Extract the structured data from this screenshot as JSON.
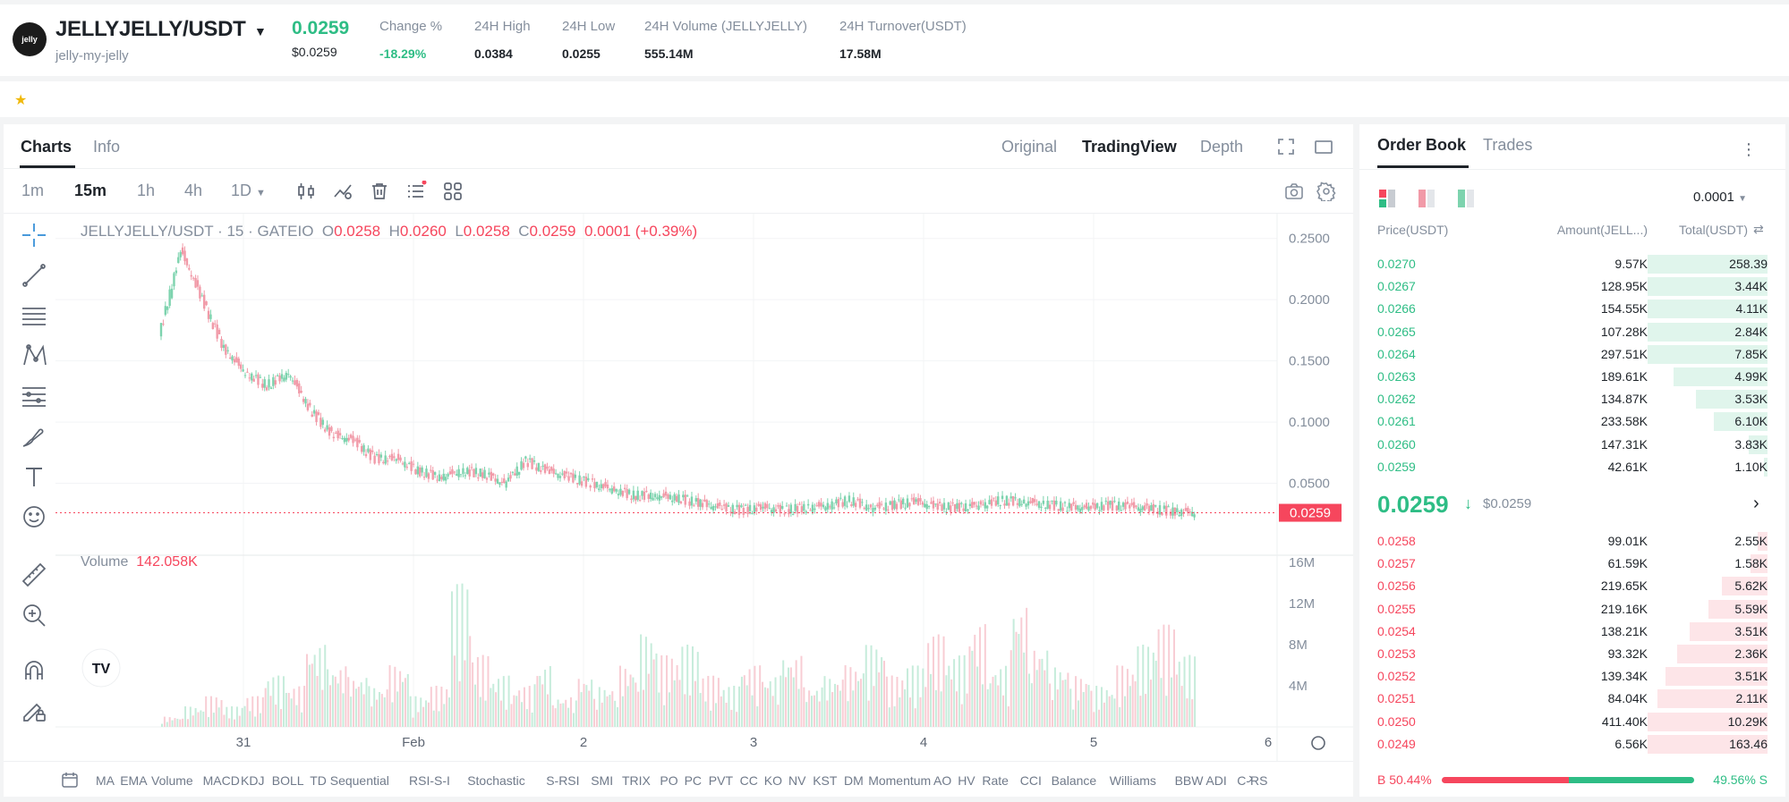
{
  "header": {
    "logo_text": "jelly",
    "pair": "JELLYJELLY/USDT",
    "pair_sub": "jelly-my-jelly",
    "last_price": "0.0259",
    "last_price_usd": "$0.0259",
    "stats": [
      {
        "label": "Change %",
        "value": "-18.29%",
        "green": true
      },
      {
        "label": "24H High",
        "value": "0.0384"
      },
      {
        "label": "24H Low",
        "value": "0.0255"
      },
      {
        "label": "24H Volume (JELLYJELLY)",
        "value": "555.14M"
      },
      {
        "label": "24H Turnover(USDT)",
        "value": "17.58M"
      }
    ]
  },
  "chart_tabs": {
    "charts": "Charts",
    "info": "Info"
  },
  "view_options": {
    "original": "Original",
    "tradingview": "TradingView",
    "depth": "Depth"
  },
  "intervals": [
    "1m",
    "15m",
    "1h",
    "4h",
    "1D"
  ],
  "active_interval": "15m",
  "legend": {
    "symbol": "JELLYJELLY/USDT · 15 · GATEIO",
    "o_label": "O",
    "o": "0.0258",
    "h_label": "H",
    "h": "0.0260",
    "l_label": "L",
    "l": "0.0258",
    "c_label": "C",
    "c": "0.0259",
    "change": "0.0001 (+0.39%)"
  },
  "volume_legend": {
    "label": "Volume",
    "value": "142.058K"
  },
  "price_axis": [
    "0.2500",
    "0.2000",
    "0.1500",
    "0.1000",
    "0.0500"
  ],
  "current_price_tag": "0.0259",
  "volume_axis": [
    "16M",
    "12M",
    "8M",
    "4M"
  ],
  "time_axis": [
    "31",
    "Feb",
    "2",
    "3",
    "4",
    "5",
    "6"
  ],
  "indicators": [
    "MA",
    "EMA",
    "Volume",
    "MACD",
    "KDJ",
    "BOLL",
    "TD Sequential",
    "RSI-S-I",
    "Stochastic",
    "S-RSI",
    "SMI",
    "TRIX",
    "PO",
    "PC",
    "PVT",
    "CC",
    "KO",
    "NV",
    "KST",
    "DM",
    "Momentum",
    "AO",
    "HV",
    "Rate",
    "CCI",
    "Balance",
    "Williams",
    "BBW",
    "ADI",
    "C-RS"
  ],
  "chart_data": {
    "type": "line",
    "title": "",
    "xlabel": "",
    "ylabel": "",
    "ylim": [
      0,
      0.26
    ],
    "series": [
      {
        "values": [
          0.17,
          0.24,
          0.2,
          0.16,
          0.14,
          0.13,
          0.14,
          0.11,
          0.09,
          0.085,
          0.07,
          0.07,
          0.06,
          0.055,
          0.06,
          0.058,
          0.05,
          0.068,
          0.06,
          0.055,
          0.05,
          0.045,
          0.04,
          0.04,
          0.038,
          0.034,
          0.03,
          0.028,
          0.03,
          0.028,
          0.03,
          0.032,
          0.036,
          0.03,
          0.032,
          0.035,
          0.031,
          0.03,
          0.032,
          0.036,
          0.035,
          0.033,
          0.031,
          0.03,
          0.032,
          0.031,
          0.029,
          0.027,
          0.0259
        ]
      }
    ],
    "volume_ylim": [
      0,
      16
    ],
    "volume_values": [
      1,
      2,
      3,
      2,
      3,
      5,
      4,
      8,
      6,
      5,
      4,
      6,
      3,
      4,
      14,
      7,
      5,
      4,
      6,
      3,
      5,
      4,
      6,
      9,
      7,
      8,
      5,
      4,
      6,
      5,
      7,
      4,
      5,
      6,
      8,
      5,
      6,
      9,
      7,
      10,
      6,
      12,
      8,
      6,
      5,
      4,
      6,
      8,
      10,
      7
    ]
  },
  "orderbook": {
    "tabs": {
      "orderbook": "Order Book",
      "trades": "Trades"
    },
    "precision": "0.0001",
    "col_price": "Price(USDT)",
    "col_amount": "Amount(JELL...)",
    "col_total": "Total(USDT)",
    "asks": [
      {
        "price": "0.0270",
        "amount": "9.57K",
        "total": "258.39",
        "depth": 1.0
      },
      {
        "price": "0.0267",
        "amount": "128.95K",
        "total": "3.44K",
        "depth": 1.0
      },
      {
        "price": "0.0266",
        "amount": "154.55K",
        "total": "4.11K",
        "depth": 1.0
      },
      {
        "price": "0.0265",
        "amount": "107.28K",
        "total": "2.84K",
        "depth": 1.0
      },
      {
        "price": "0.0264",
        "amount": "297.51K",
        "total": "7.85K",
        "depth": 1.0
      },
      {
        "price": "0.0263",
        "amount": "189.61K",
        "total": "4.99K",
        "depth": 0.78
      },
      {
        "price": "0.0262",
        "amount": "134.87K",
        "total": "3.53K",
        "depth": 0.6
      },
      {
        "price": "0.0261",
        "amount": "233.58K",
        "total": "6.10K",
        "depth": 0.45
      },
      {
        "price": "0.0260",
        "amount": "147.31K",
        "total": "3.83K",
        "depth": 0.16
      },
      {
        "price": "0.0259",
        "amount": "42.61K",
        "total": "1.10K",
        "depth": 0.03
      }
    ],
    "mid_price": "0.0259",
    "mid_arrow": "↓",
    "mid_price_usd": "$0.0259",
    "bids": [
      {
        "price": "0.0258",
        "amount": "99.01K",
        "total": "2.55K",
        "depth": 0.08
      },
      {
        "price": "0.0257",
        "amount": "61.59K",
        "total": "1.58K",
        "depth": 0.14
      },
      {
        "price": "0.0256",
        "amount": "219.65K",
        "total": "5.62K",
        "depth": 0.38
      },
      {
        "price": "0.0255",
        "amount": "219.16K",
        "total": "5.59K",
        "depth": 0.49
      },
      {
        "price": "0.0254",
        "amount": "138.21K",
        "total": "3.51K",
        "depth": 0.65
      },
      {
        "price": "0.0253",
        "amount": "93.32K",
        "total": "2.36K",
        "depth": 0.75
      },
      {
        "price": "0.0252",
        "amount": "139.34K",
        "total": "3.51K",
        "depth": 0.85
      },
      {
        "price": "0.0251",
        "amount": "84.04K",
        "total": "2.11K",
        "depth": 0.92
      },
      {
        "price": "0.0250",
        "amount": "411.40K",
        "total": "10.29K",
        "depth": 1.0
      },
      {
        "price": "0.0249",
        "amount": "6.56K",
        "total": "163.46",
        "depth": 1.0
      }
    ],
    "buy_ratio": "B 50.44%",
    "sell_ratio": "49.56% S",
    "buy_pct": 50.44
  },
  "colors": {
    "green": "#2ebd85",
    "red": "#f6465d",
    "candle_up": "#7dd3ae",
    "candle_down": "#f19aa8"
  }
}
